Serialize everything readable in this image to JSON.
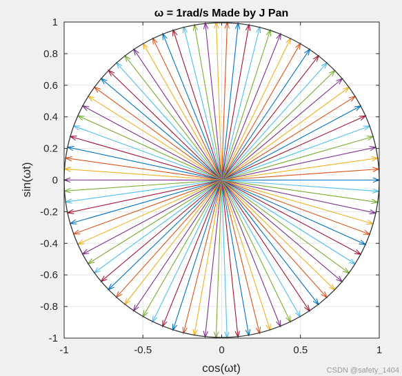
{
  "chart_data": {
    "type": "line",
    "title": "ω = 1rad/s   Made by J Pan",
    "xlabel": "cos(ωt)",
    "ylabel": "sin(ωt)",
    "xlim": [
      -1,
      1
    ],
    "ylim": [
      -1,
      1
    ],
    "x_ticks": [
      -1,
      -0.5,
      0,
      0.5,
      1
    ],
    "x_tick_labels": [
      "-1",
      "-0.5",
      "0",
      "0.5",
      "1"
    ],
    "y_ticks": [
      -1,
      -0.8,
      -0.6,
      -0.4,
      -0.2,
      0,
      0.2,
      0.4,
      0.6,
      0.8,
      1
    ],
    "y_tick_labels": [
      "-1",
      "-0.8",
      "-0.6",
      "-0.4",
      "-0.2",
      "0",
      "0.2",
      "0.4",
      "0.6",
      "0.8",
      "1"
    ],
    "grid": true,
    "circle": {
      "center": [
        0,
        0
      ],
      "radius": 1,
      "color": "#333333"
    },
    "vectors": {
      "count": 90,
      "origin": [
        0,
        0
      ],
      "length": 1,
      "start_angle_rad": 0,
      "step_angle_rad": 0.0698,
      "color_cycle": [
        "#0072BD",
        "#D95319",
        "#EDB120",
        "#7E2F8E",
        "#77AC30",
        "#4DBEEE",
        "#A2142F"
      ]
    }
  },
  "colors": {
    "figure_bg": "#f0f0f0",
    "axes_bg": "#ffffff",
    "grid": "#e6e6e6",
    "axes_edge": "#262626"
  },
  "watermark": "CSDN @safety_1404"
}
